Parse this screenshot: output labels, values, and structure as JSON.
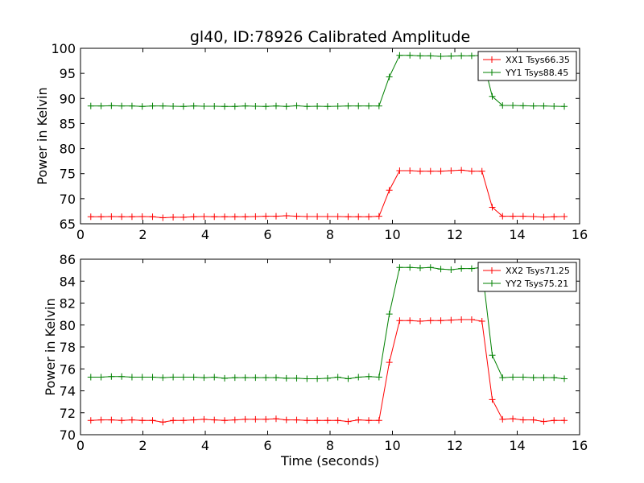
{
  "chart_data": [
    {
      "type": "line",
      "title": "gl40, ID:78926 Calibrated Amplitude",
      "xlabel": "",
      "ylabel": "Power in Kelvin",
      "xlim": [
        0,
        16
      ],
      "ylim": [
        65,
        100
      ],
      "xticks": [
        0,
        2,
        4,
        6,
        8,
        10,
        12,
        14,
        16
      ],
      "yticks": [
        65,
        70,
        75,
        80,
        85,
        90,
        95,
        100
      ],
      "grid": false,
      "legend": "top-right",
      "x": [
        0.33,
        0.66,
        0.99,
        1.32,
        1.65,
        1.98,
        2.31,
        2.64,
        2.97,
        3.3,
        3.63,
        3.96,
        4.29,
        4.62,
        4.95,
        5.28,
        5.61,
        5.94,
        6.27,
        6.6,
        6.93,
        7.26,
        7.59,
        7.92,
        8.25,
        8.58,
        8.91,
        9.24,
        9.57,
        9.9,
        10.23,
        10.56,
        10.89,
        11.22,
        11.55,
        11.88,
        12.21,
        12.54,
        12.87,
        13.2,
        13.53,
        13.86,
        14.19,
        14.52,
        14.85,
        15.18,
        15.51
      ],
      "series": [
        {
          "name": "XX1 Tsys66.35",
          "color": "#ff0000",
          "values": [
            66.4,
            66.4,
            66.45,
            66.4,
            66.4,
            66.45,
            66.4,
            66.2,
            66.3,
            66.3,
            66.4,
            66.45,
            66.4,
            66.4,
            66.4,
            66.4,
            66.45,
            66.5,
            66.5,
            66.6,
            66.5,
            66.45,
            66.45,
            66.45,
            66.45,
            66.4,
            66.4,
            66.4,
            66.5,
            71.7,
            75.6,
            75.6,
            75.5,
            75.5,
            75.5,
            75.6,
            75.7,
            75.5,
            75.5,
            68.3,
            66.5,
            66.5,
            66.5,
            66.45,
            66.35,
            66.4,
            66.45
          ]
        },
        {
          "name": "YY1 Tsys88.45",
          "color": "#008000",
          "values": [
            88.5,
            88.5,
            88.55,
            88.5,
            88.5,
            88.4,
            88.5,
            88.5,
            88.45,
            88.4,
            88.5,
            88.45,
            88.45,
            88.4,
            88.4,
            88.5,
            88.45,
            88.4,
            88.5,
            88.4,
            88.55,
            88.4,
            88.45,
            88.4,
            88.45,
            88.5,
            88.5,
            88.5,
            88.5,
            94.3,
            98.6,
            98.6,
            98.5,
            98.5,
            98.4,
            98.45,
            98.5,
            98.5,
            98.6,
            90.4,
            88.6,
            88.6,
            88.55,
            88.5,
            88.5,
            88.45,
            88.4
          ]
        }
      ]
    },
    {
      "type": "line",
      "title": "",
      "xlabel": "Time (seconds)",
      "ylabel": "Power in Kelvin",
      "xlim": [
        0,
        16
      ],
      "ylim": [
        70,
        86
      ],
      "xticks": [
        0,
        2,
        4,
        6,
        8,
        10,
        12,
        14,
        16
      ],
      "yticks": [
        70,
        72,
        74,
        76,
        78,
        80,
        82,
        84,
        86
      ],
      "grid": false,
      "legend": "top-right",
      "x": [
        0.33,
        0.66,
        0.99,
        1.32,
        1.65,
        1.98,
        2.31,
        2.64,
        2.97,
        3.3,
        3.63,
        3.96,
        4.29,
        4.62,
        4.95,
        5.28,
        5.61,
        5.94,
        6.27,
        6.6,
        6.93,
        7.26,
        7.59,
        7.92,
        8.25,
        8.58,
        8.91,
        9.24,
        9.57,
        9.9,
        10.23,
        10.56,
        10.89,
        11.22,
        11.55,
        11.88,
        12.21,
        12.54,
        12.87,
        13.2,
        13.53,
        13.86,
        14.19,
        14.52,
        14.85,
        15.18,
        15.51
      ],
      "series": [
        {
          "name": "XX2 Tsys71.25",
          "color": "#ff0000",
          "values": [
            71.3,
            71.35,
            71.35,
            71.3,
            71.35,
            71.3,
            71.3,
            71.15,
            71.3,
            71.3,
            71.35,
            71.4,
            71.35,
            71.3,
            71.35,
            71.4,
            71.4,
            71.4,
            71.45,
            71.35,
            71.35,
            71.3,
            71.3,
            71.3,
            71.3,
            71.2,
            71.35,
            71.3,
            71.3,
            76.6,
            80.4,
            80.4,
            80.35,
            80.4,
            80.4,
            80.45,
            80.5,
            80.5,
            80.35,
            73.2,
            71.4,
            71.45,
            71.35,
            71.35,
            71.2,
            71.3,
            71.3
          ]
        },
        {
          "name": "YY2 Tsys75.21",
          "color": "#008000",
          "values": [
            75.25,
            75.25,
            75.3,
            75.3,
            75.25,
            75.25,
            75.25,
            75.2,
            75.25,
            75.25,
            75.25,
            75.2,
            75.25,
            75.15,
            75.2,
            75.2,
            75.2,
            75.2,
            75.2,
            75.15,
            75.15,
            75.1,
            75.1,
            75.15,
            75.25,
            75.1,
            75.25,
            75.3,
            75.25,
            81.0,
            85.25,
            85.25,
            85.2,
            85.25,
            85.1,
            85.05,
            85.15,
            85.15,
            85.25,
            77.25,
            75.2,
            75.25,
            75.25,
            75.2,
            75.2,
            75.2,
            75.1
          ]
        }
      ]
    }
  ]
}
